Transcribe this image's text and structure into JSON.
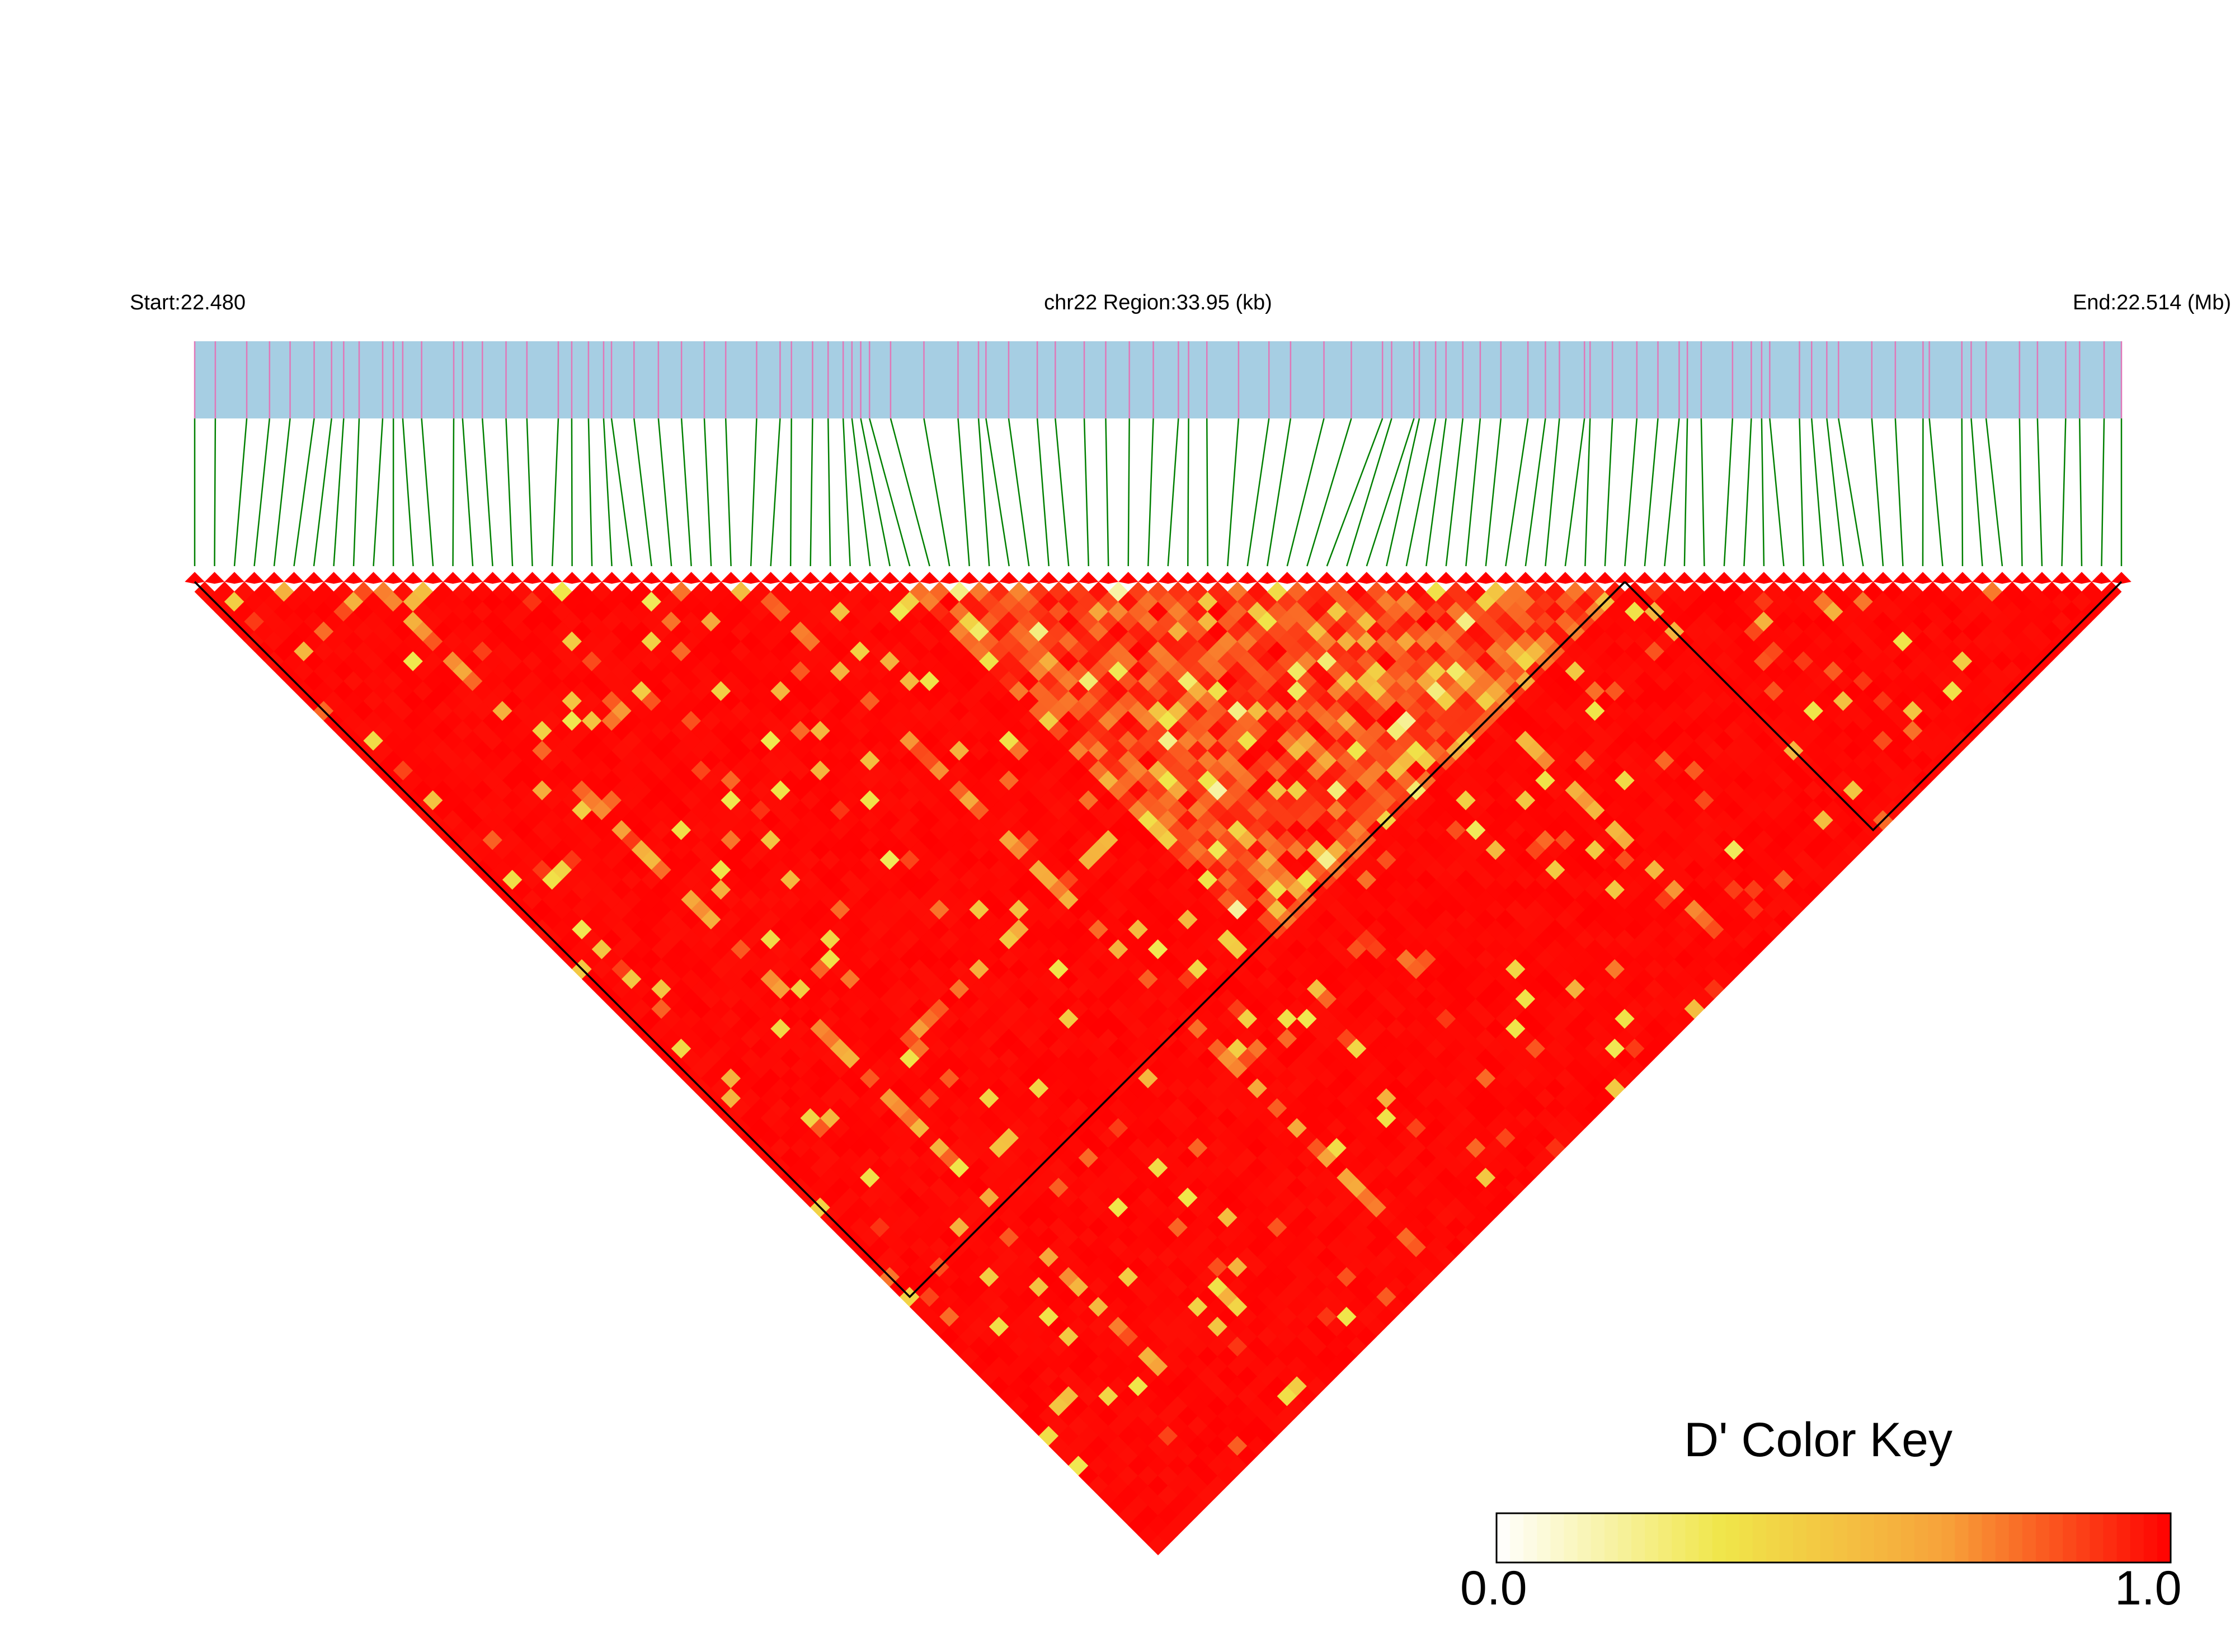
{
  "chart_data": {
    "type": "heatmap",
    "subtype": "linkage-disequilibrium-triangle",
    "metric": "D'",
    "header": {
      "start_label": "Start:22.480",
      "region_label": "chr22 Region:33.95 (kb)",
      "end_label": "End:22.514 (Mb)"
    },
    "region": {
      "chromosome": "chr22",
      "start_mb": 22.48,
      "end_mb": 22.514,
      "length_kb": 33.95
    },
    "snp_count": 98,
    "blocks": [
      {
        "from_snp": 0,
        "to_snp": 72
      },
      {
        "from_snp": 36,
        "to_snp": 72
      },
      {
        "from_snp": 72,
        "to_snp": 97
      }
    ],
    "color_key": {
      "title": "D' Color Key",
      "min_label": "0.0",
      "max_label": "1.0",
      "range": [
        0,
        1
      ],
      "colors": [
        "#ffffff",
        "#f0e64a",
        "#f7a23a",
        "#ff0000"
      ]
    },
    "colors": {
      "track_fill": "#a6cee3",
      "snp_tick": "#e078b8",
      "connector": "#008000",
      "high_ld": "#ff0000"
    }
  }
}
